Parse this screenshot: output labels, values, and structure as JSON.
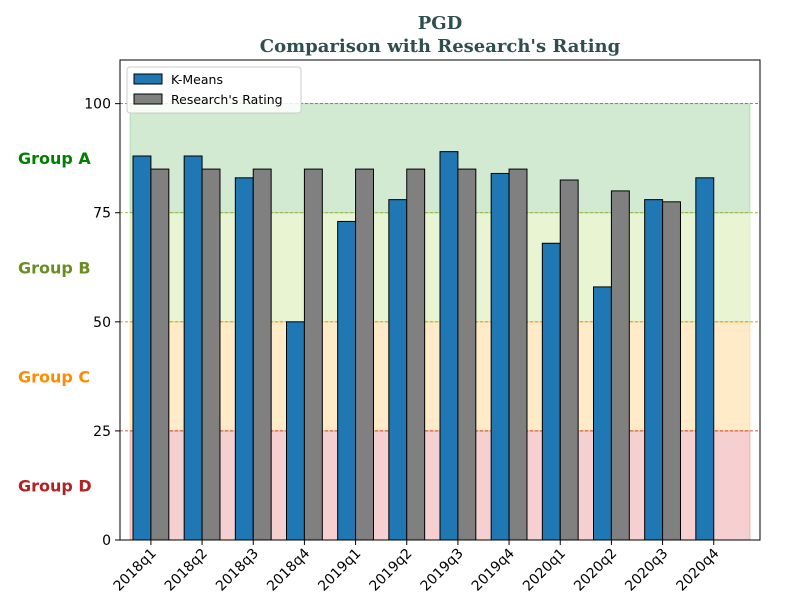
{
  "chart_data": {
    "type": "bar",
    "title": "PGD",
    "subtitle": "Comparison with Research's Rating",
    "categories": [
      "2018q1",
      "2018q2",
      "2018q3",
      "2018q4",
      "2019q1",
      "2019q2",
      "2019q3",
      "2019q4",
      "2020q1",
      "2020q2",
      "2020q3",
      "2020q4"
    ],
    "series": [
      {
        "name": "K-Means",
        "color": "#1f77b4",
        "values": [
          88,
          88,
          83,
          50,
          73,
          78,
          89,
          84,
          68,
          58,
          78,
          83
        ]
      },
      {
        "name": "Research's Rating",
        "color": "#808080",
        "values": [
          85,
          85,
          85,
          85,
          85,
          85,
          85,
          85,
          82.5,
          80,
          77.5,
          null
        ]
      }
    ],
    "ylim": [
      0,
      110
    ],
    "yticks": [
      0,
      25,
      50,
      75,
      100
    ],
    "xlabel": "",
    "ylabel": "",
    "legend": "top-left",
    "grid": false,
    "bands": [
      {
        "label": "Group A",
        "from": 75,
        "to": 100,
        "color": "#2ca02c",
        "label_color": "#008000",
        "line_color": "#2e8b2e"
      },
      {
        "label": "Group B",
        "from": 50,
        "to": 75,
        "color": "#9acd32",
        "label_color": "#6b8e23",
        "line_color": "#8aa82a"
      },
      {
        "label": "Group C",
        "from": 25,
        "to": 50,
        "color": "#ffa500",
        "label_color": "#ff8c00",
        "line_color": "#e08a00"
      },
      {
        "label": "Group D",
        "from": 0,
        "to": 25,
        "color": "#d62728",
        "label_color": "#b22222",
        "line_color": "#b22222"
      }
    ]
  }
}
